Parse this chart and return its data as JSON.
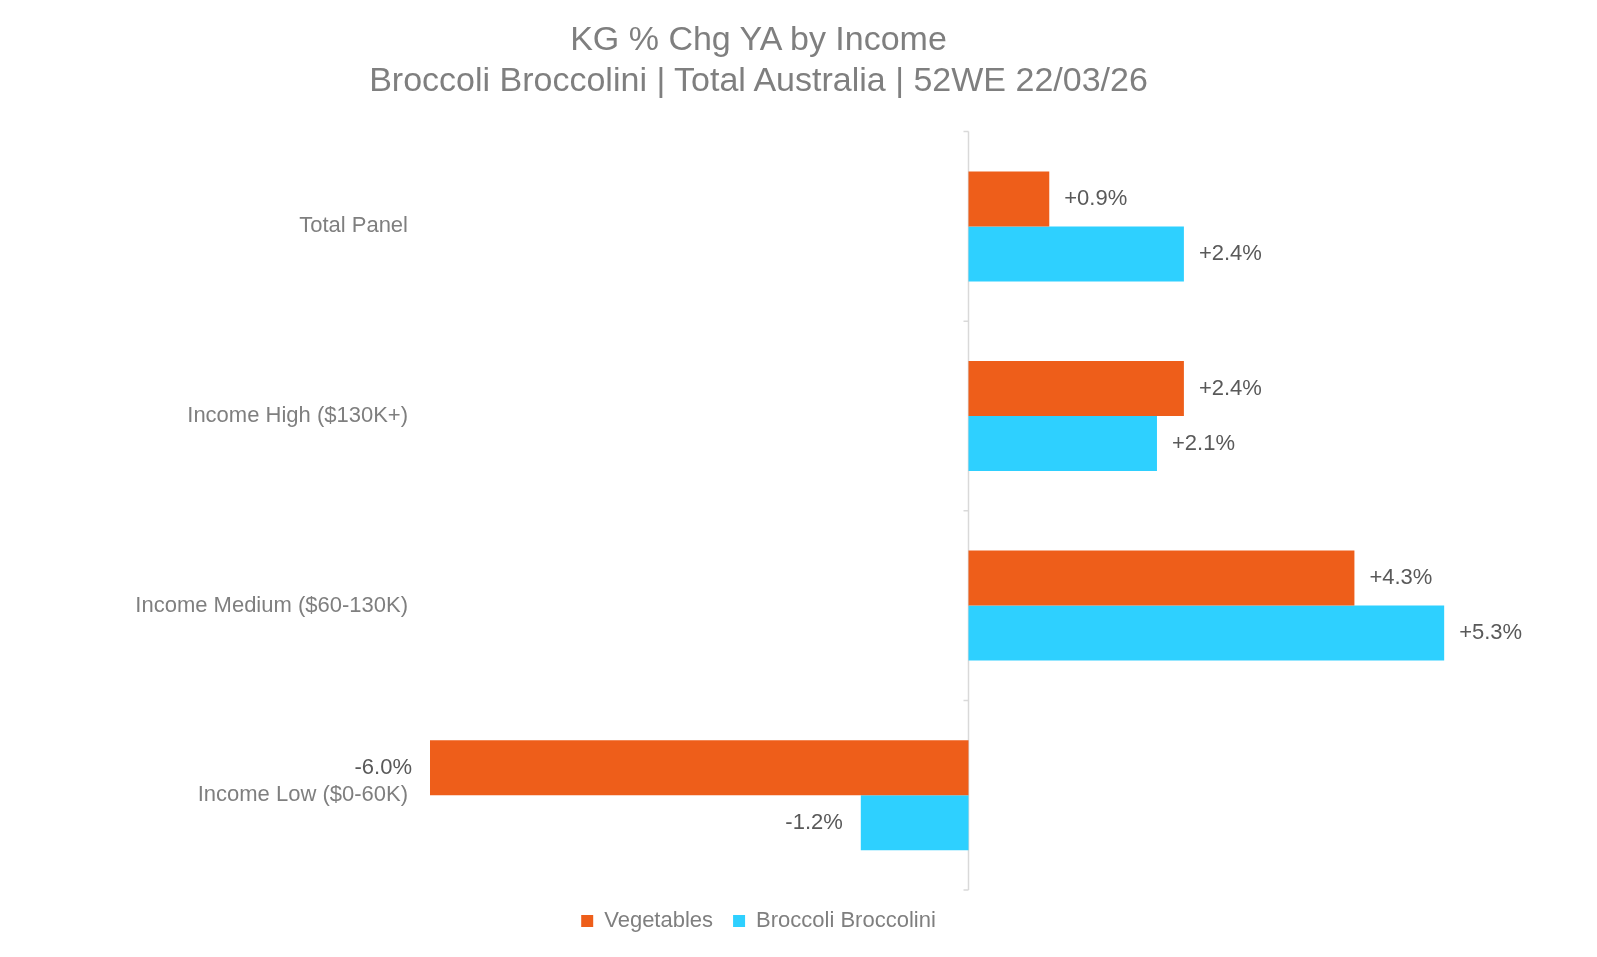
{
  "chart_data": {
    "type": "bar",
    "orientation": "horizontal",
    "title": "KG % Chg YA by Income",
    "subtitle": "Broccoli Broccolini | Total Australia | 52WE 22/03/26",
    "categories": [
      "Total Panel",
      "Income High ($130K+)",
      "Income Medium ($60-130K)",
      "Income Low ($0-60K)"
    ],
    "series": [
      {
        "name": "Vegetables",
        "color": "#ee5e1a",
        "values": [
          0.9,
          2.4,
          4.3,
          -6.0
        ],
        "value_labels": [
          "+0.9%",
          "+2.4%",
          "+4.3%",
          "-6.0%"
        ]
      },
      {
        "name": "Broccoli Broccolini",
        "color": "#2ed0ff",
        "values": [
          2.4,
          2.1,
          5.3,
          -1.2
        ],
        "value_labels": [
          "+2.4%",
          "+2.1%",
          "+5.3%",
          "-1.2%"
        ]
      }
    ],
    "legend": "bottom",
    "tick_labels": "y"
  }
}
